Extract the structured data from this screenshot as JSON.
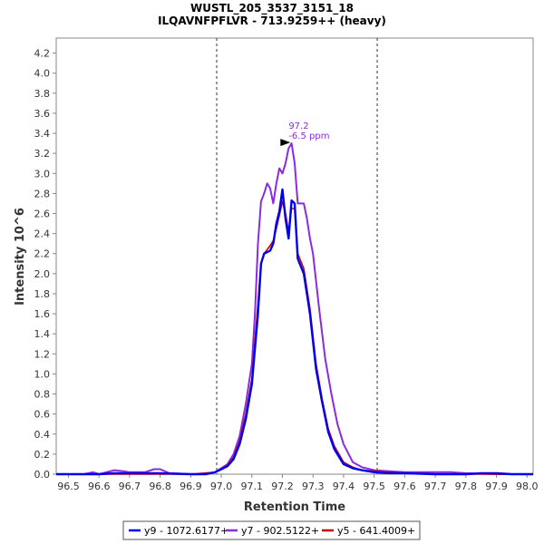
{
  "chart_data": {
    "type": "line",
    "title": "WUSTL_205_3537_3151_18",
    "subtitle": "ILQAVNFPFLVR - 713.9259++ (heavy)",
    "xlabel": "Retention Time",
    "ylabel": "Intensity 10^6",
    "xlim": [
      96.46,
      98.02
    ],
    "ylim": [
      0,
      4.35
    ],
    "x_ticks": [
      "96.5",
      "96.6",
      "96.7",
      "96.8",
      "96.9",
      "97.0",
      "97.1",
      "97.2",
      "97.3",
      "97.4",
      "97.5",
      "97.6",
      "97.7",
      "97.8",
      "97.9",
      "98.0"
    ],
    "x_tick_values": [
      96.5,
      96.6,
      96.7,
      96.8,
      96.9,
      97.0,
      97.1,
      97.2,
      97.3,
      97.4,
      97.5,
      97.6,
      97.7,
      97.8,
      97.9,
      98.0
    ],
    "y_ticks": [
      "0.0",
      "0.2",
      "0.4",
      "0.6",
      "0.8",
      "1.0",
      "1.2",
      "1.4",
      "1.6",
      "1.8",
      "2.0",
      "2.2",
      "2.4",
      "2.6",
      "2.8",
      "3.0",
      "3.2",
      "3.4",
      "3.6",
      "3.8",
      "4.0",
      "4.2"
    ],
    "y_tick_values": [
      0,
      0.2,
      0.4,
      0.6,
      0.8,
      1.0,
      1.2,
      1.4,
      1.6,
      1.8,
      2.0,
      2.2,
      2.4,
      2.6,
      2.8,
      3.0,
      3.2,
      3.4,
      3.6,
      3.8,
      4.0,
      4.2
    ],
    "boundaries": [
      96.985,
      97.51
    ],
    "grid": false,
    "legend_position": "bottom",
    "annotation": {
      "x": 97.235,
      "y": 3.3,
      "line1": "97.2",
      "line2": "-6.5 ppm",
      "color": "#8a2be2"
    },
    "series": [
      {
        "name": "y9 - 1072.6177+",
        "color": "#0000ee",
        "width": 2.4,
        "x": [
          96.46,
          96.55,
          96.6,
          96.65,
          96.7,
          96.75,
          96.8,
          96.9,
          96.95,
          96.98,
          97.0,
          97.02,
          97.04,
          97.06,
          97.08,
          97.1,
          97.12,
          97.13,
          97.14,
          97.16,
          97.17,
          97.18,
          97.19,
          97.2,
          97.21,
          97.22,
          97.23,
          97.24,
          97.25,
          97.27,
          97.29,
          97.31,
          97.33,
          97.35,
          97.37,
          97.4,
          97.43,
          97.46,
          97.5,
          97.55,
          97.6,
          97.7,
          97.8,
          97.85,
          97.9,
          97.95,
          98.02
        ],
        "y": [
          0,
          0,
          0,
          0.01,
          0.01,
          0.01,
          0.01,
          0,
          0,
          0.02,
          0.05,
          0.08,
          0.15,
          0.3,
          0.55,
          0.9,
          1.6,
          2.1,
          2.2,
          2.23,
          2.3,
          2.5,
          2.62,
          2.84,
          2.55,
          2.35,
          2.73,
          2.7,
          2.15,
          2.0,
          1.6,
          1.05,
          0.72,
          0.42,
          0.25,
          0.1,
          0.06,
          0.04,
          0.02,
          0.01,
          0.01,
          0,
          0,
          0.01,
          0.01,
          0,
          0
        ]
      },
      {
        "name": "y7 - 902.5122+",
        "color": "#8a2be2",
        "width": 2.0,
        "x": [
          96.46,
          96.55,
          96.58,
          96.6,
          96.65,
          96.68,
          96.7,
          96.75,
          96.78,
          96.8,
          96.83,
          96.9,
          96.95,
          96.98,
          97.0,
          97.02,
          97.04,
          97.06,
          97.08,
          97.1,
          97.11,
          97.12,
          97.13,
          97.14,
          97.15,
          97.16,
          97.17,
          97.18,
          97.19,
          97.2,
          97.21,
          97.22,
          97.23,
          97.24,
          97.25,
          97.26,
          97.27,
          97.28,
          97.29,
          97.3,
          97.32,
          97.34,
          97.36,
          97.38,
          97.4,
          97.43,
          97.46,
          97.5,
          97.55,
          97.6,
          97.65,
          97.7,
          97.75,
          97.8,
          97.9,
          98.02
        ],
        "y": [
          0,
          0,
          0.02,
          0,
          0.04,
          0.03,
          0.02,
          0.02,
          0.05,
          0.05,
          0.01,
          0,
          0,
          0.02,
          0.06,
          0.1,
          0.2,
          0.38,
          0.7,
          1.1,
          1.6,
          2.3,
          2.72,
          2.8,
          2.9,
          2.85,
          2.7,
          2.9,
          3.05,
          3.0,
          3.1,
          3.25,
          3.3,
          3.1,
          2.7,
          2.7,
          2.7,
          2.55,
          2.35,
          2.2,
          1.65,
          1.15,
          0.8,
          0.5,
          0.3,
          0.12,
          0.07,
          0.04,
          0.03,
          0.02,
          0.02,
          0.02,
          0.02,
          0.01,
          0,
          0
        ]
      },
      {
        "name": "y5 - 641.4009+",
        "color": "#cc0000",
        "width": 1.6,
        "x": [
          96.46,
          96.6,
          96.7,
          96.8,
          96.9,
          96.98,
          97.0,
          97.02,
          97.04,
          97.06,
          97.08,
          97.1,
          97.12,
          97.13,
          97.14,
          97.16,
          97.17,
          97.18,
          97.19,
          97.2,
          97.21,
          97.22,
          97.23,
          97.24,
          97.25,
          97.27,
          97.29,
          97.31,
          97.33,
          97.35,
          97.37,
          97.4,
          97.43,
          97.46,
          97.5,
          97.55,
          97.6,
          97.7,
          97.8,
          98.02
        ],
        "y": [
          0,
          0,
          0,
          0,
          0,
          0.02,
          0.05,
          0.09,
          0.17,
          0.33,
          0.6,
          0.95,
          1.7,
          2.1,
          2.2,
          2.28,
          2.33,
          2.45,
          2.58,
          2.72,
          2.6,
          2.42,
          2.65,
          2.65,
          2.2,
          2.05,
          1.65,
          1.1,
          0.75,
          0.45,
          0.28,
          0.12,
          0.07,
          0.04,
          0.03,
          0.02,
          0.01,
          0,
          0,
          0
        ]
      }
    ]
  }
}
